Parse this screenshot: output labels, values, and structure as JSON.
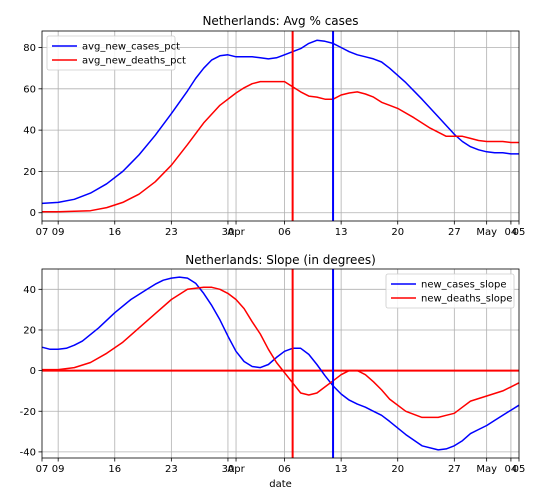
{
  "chart_data": [
    {
      "type": "line",
      "title": "Netherlands: Avg % cases",
      "xlabel": "",
      "ylabel": "",
      "x_tick_labels": [
        "07",
        "09",
        "16",
        "23",
        "30",
        "Apr",
        "06",
        "13",
        "20",
        "27",
        "May",
        "04",
        "05"
      ],
      "x_tick_days": [
        7,
        9,
        16,
        23,
        30,
        31,
        37,
        44,
        51,
        58,
        62,
        65,
        66
      ],
      "x_date_start": "2020-03-07",
      "x_date_end": "2020-05-05",
      "ylim": [
        -4,
        88
      ],
      "yticks": [
        0,
        20,
        40,
        60,
        80
      ],
      "legend_position": "top-left",
      "grid": true,
      "vlines": [
        {
          "date": "2020-04-07",
          "color": "#ff0000"
        },
        {
          "date": "2020-04-12",
          "color": "#0000ff"
        }
      ],
      "series": [
        {
          "name": "avg_new_cases_pct",
          "color": "#0000ff",
          "x": [
            7,
            9,
            11,
            13,
            15,
            17,
            19,
            21,
            23,
            25,
            26,
            27,
            28,
            29,
            30,
            31,
            32,
            33,
            34,
            35,
            36,
            37,
            38,
            39,
            40,
            41,
            42,
            43,
            44,
            45,
            46,
            47,
            48,
            49,
            50,
            52,
            54,
            56,
            58,
            59,
            60,
            61,
            62,
            63,
            64,
            65,
            66
          ],
          "values": [
            4.5,
            5,
            6.5,
            9.5,
            14,
            20,
            28,
            37.5,
            48,
            59,
            65,
            70,
            74,
            76,
            76.5,
            75.5,
            75.5,
            75.5,
            75,
            74.5,
            75,
            76.5,
            78,
            79.5,
            82,
            83.5,
            83,
            82,
            80,
            78,
            76.5,
            75.5,
            74.5,
            73,
            70,
            63,
            55,
            46.5,
            38,
            34.5,
            32,
            30.5,
            29.5,
            29,
            29,
            28.5,
            28.5
          ]
        },
        {
          "name": "avg_new_deaths_pct",
          "color": "#ff0000",
          "x": [
            7,
            9,
            11,
            13,
            15,
            17,
            19,
            21,
            23,
            25,
            27,
            29,
            31,
            32,
            33,
            34,
            35,
            36,
            37,
            38,
            39,
            40,
            41,
            42,
            43,
            44,
            45,
            46,
            47,
            48,
            49,
            50,
            51,
            53,
            55,
            57,
            59,
            60,
            61,
            62,
            63,
            64,
            65,
            66
          ],
          "values": [
            0.5,
            0.5,
            0.7,
            1,
            2.5,
            5,
            9,
            15,
            23,
            33,
            43.5,
            52,
            58,
            60.5,
            62.5,
            63.5,
            63.5,
            63.5,
            63.5,
            61,
            58.5,
            56.5,
            56,
            55,
            55,
            57,
            58,
            58.5,
            57.5,
            56,
            53.5,
            52,
            50.5,
            46,
            41,
            37,
            37,
            36,
            35,
            34.5,
            34.5,
            34.5,
            34,
            34
          ]
        }
      ]
    },
    {
      "type": "line",
      "title": "Netherlands: Slope (in degrees)",
      "xlabel": "date",
      "ylabel": "",
      "x_tick_labels": [
        "07",
        "09",
        "16",
        "23",
        "30",
        "Apr",
        "06",
        "13",
        "20",
        "27",
        "May",
        "04",
        "05"
      ],
      "x_tick_days": [
        7,
        9,
        16,
        23,
        30,
        31,
        37,
        44,
        51,
        58,
        62,
        65,
        66
      ],
      "x_date_start": "2020-03-07",
      "x_date_end": "2020-05-05",
      "ylim": [
        -43,
        50
      ],
      "yticks": [
        -40,
        -20,
        0,
        20,
        40
      ],
      "legend_position": "top-right",
      "grid": true,
      "hlines": [
        {
          "y": 0,
          "color": "#ff0000"
        }
      ],
      "vlines": [
        {
          "date": "2020-04-07",
          "color": "#ff0000"
        },
        {
          "date": "2020-04-12",
          "color": "#0000ff"
        }
      ],
      "series": [
        {
          "name": "new_cases_slope",
          "color": "#0000ff",
          "x": [
            7,
            8,
            9,
            10,
            11,
            12,
            14,
            16,
            18,
            20,
            21,
            22,
            23,
            24,
            25,
            26,
            27,
            28,
            29,
            30,
            31,
            32,
            33,
            34,
            35,
            36,
            37,
            38,
            39,
            40,
            41,
            42,
            43,
            44,
            45,
            46,
            47,
            48,
            49,
            50,
            52,
            54,
            56,
            57,
            58,
            59,
            60,
            61,
            62,
            63,
            64,
            65,
            66
          ],
          "values": [
            11.5,
            10.5,
            10.5,
            11,
            12.5,
            14.5,
            21,
            28.5,
            35,
            40,
            42.5,
            44.5,
            45.5,
            46,
            45.5,
            43,
            38,
            32,
            25,
            17,
            9.5,
            4.5,
            2,
            1.5,
            3,
            6.5,
            9.5,
            11,
            11,
            8,
            3,
            -2.5,
            -7.5,
            -11.5,
            -14.5,
            -16.5,
            -18,
            -20,
            -22,
            -25,
            -31.5,
            -37,
            -39,
            -38.5,
            -37,
            -34.5,
            -31,
            -29,
            -27,
            -24.5,
            -22,
            -19.5,
            -17
          ]
        },
        {
          "name": "new_deaths_slope",
          "color": "#ff0000",
          "x": [
            7,
            9,
            11,
            13,
            15,
            17,
            19,
            21,
            23,
            25,
            27,
            28,
            29,
            30,
            31,
            32,
            33,
            34,
            35,
            36,
            37,
            38,
            39,
            40,
            41,
            42,
            43,
            44,
            45,
            46,
            47,
            48,
            49,
            50,
            52,
            54,
            55,
            56,
            57,
            58,
            59,
            60,
            62,
            64,
            65,
            66
          ],
          "values": [
            0.5,
            0.5,
            1.5,
            4,
            8.5,
            14,
            21,
            28,
            35,
            40,
            41,
            41,
            40,
            38,
            35,
            30.5,
            24,
            18,
            10.5,
            4,
            -1,
            -6,
            -11,
            -12,
            -11,
            -8,
            -5,
            -2,
            0,
            0,
            -2,
            -5.5,
            -9.5,
            -14,
            -20,
            -23,
            -23,
            -23,
            -22,
            -21,
            -18,
            -15,
            -12.5,
            -10,
            -8,
            -6
          ]
        }
      ]
    }
  ]
}
